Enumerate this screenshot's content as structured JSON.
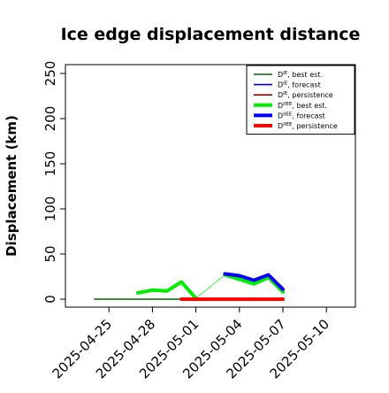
{
  "chart_data": {
    "type": "line",
    "title": "Ice edge displacement distance",
    "xlabel": "",
    "ylabel": "Displacement (km)",
    "ylim": [
      0,
      250
    ],
    "yticks": [
      0,
      50,
      100,
      150,
      200,
      250
    ],
    "xlim": [
      "2025-04-22",
      "2025-05-12"
    ],
    "xticks": [
      {
        "date": "2025-04-25",
        "label": "2025-04-25",
        "color": "#000000"
      },
      {
        "date": "2025-04-28",
        "label": "2025-04-28",
        "color": "#000000"
      },
      {
        "date": "2025-05-01",
        "label": "2025-05-01",
        "color": "#228B22"
      },
      {
        "date": "2025-05-04",
        "label": "2025-05-04",
        "color": "#000000"
      },
      {
        "date": "2025-05-07",
        "label": "2025-05-07",
        "color": "#000000"
      },
      {
        "date": "2025-05-10",
        "label": "2025-05-10",
        "color": "#000000"
      }
    ],
    "grid": false,
    "legend_position": "top-right",
    "series": [
      {
        "name": "D^IE, best est.",
        "legend_main": "D",
        "legend_sup": "IE",
        "legend_rest": ", best est.",
        "color": "#006400",
        "width": "thin",
        "points": [
          [
            "2025-04-24",
            0
          ],
          [
            "2025-04-25",
            0
          ],
          [
            "2025-04-26",
            0
          ],
          [
            "2025-04-27",
            0
          ],
          [
            "2025-04-28",
            0
          ],
          [
            "2025-04-29",
            0
          ],
          [
            "2025-04-30",
            0
          ],
          [
            "2025-05-01",
            0
          ]
        ]
      },
      {
        "name": "D^IE, forecast",
        "legend_main": "D",
        "legend_sup": "IE",
        "legend_rest": ", forecast",
        "color": "#0000cd",
        "width": "thin",
        "points": []
      },
      {
        "name": "D^IE, persistence",
        "legend_main": "D",
        "legend_sup": "IE",
        "legend_rest": ", persistence",
        "color": "#8b0000",
        "width": "thin",
        "points": []
      },
      {
        "name": "D^IIEE, best est.",
        "legend_main": "D",
        "legend_sup": "IIEE",
        "legend_rest": ", best est.",
        "color": "#00ee00",
        "width": "thick",
        "points": [
          [
            "2025-04-27",
            7
          ],
          [
            "2025-04-28",
            10
          ],
          [
            "2025-04-29",
            9
          ],
          [
            "2025-04-30",
            19
          ],
          [
            "2025-05-01",
            1
          ]
        ]
      },
      {
        "name": "D^IIEE, best est. (link)",
        "legend": false,
        "color": "#00ee00",
        "width": "hair",
        "points": [
          [
            "2025-05-01",
            1
          ],
          [
            "2025-05-03",
            27
          ]
        ]
      },
      {
        "name": "D^IIEE, best est. (cont.)",
        "legend": false,
        "color": "#00ee00",
        "width": "thick",
        "points": [
          [
            "2025-05-03",
            27
          ],
          [
            "2025-05-04",
            22
          ],
          [
            "2025-05-05",
            17
          ],
          [
            "2025-05-06",
            24
          ],
          [
            "2025-05-07",
            8
          ]
        ]
      },
      {
        "name": "D^IIEE, forecast",
        "legend_main": "D",
        "legend_sup": "IIEE",
        "legend_rest": ", forecast",
        "color": "#0000ff",
        "width": "thick",
        "points": [
          [
            "2025-05-03",
            28
          ],
          [
            "2025-05-04",
            26
          ],
          [
            "2025-05-05",
            21
          ],
          [
            "2025-05-06",
            27
          ],
          [
            "2025-05-07",
            11
          ]
        ]
      },
      {
        "name": "D^IIEE, persistence",
        "legend_main": "D",
        "legend_sup": "IIEE",
        "legend_rest": ", persistence",
        "color": "#ff0000",
        "width": "thick",
        "points": [
          [
            "2025-04-30",
            0
          ],
          [
            "2025-05-01",
            0
          ],
          [
            "2025-05-02",
            0
          ],
          [
            "2025-05-03",
            0
          ],
          [
            "2025-05-04",
            0
          ],
          [
            "2025-05-05",
            0
          ],
          [
            "2025-05-06",
            0
          ],
          [
            "2025-05-07",
            0
          ]
        ]
      }
    ]
  }
}
